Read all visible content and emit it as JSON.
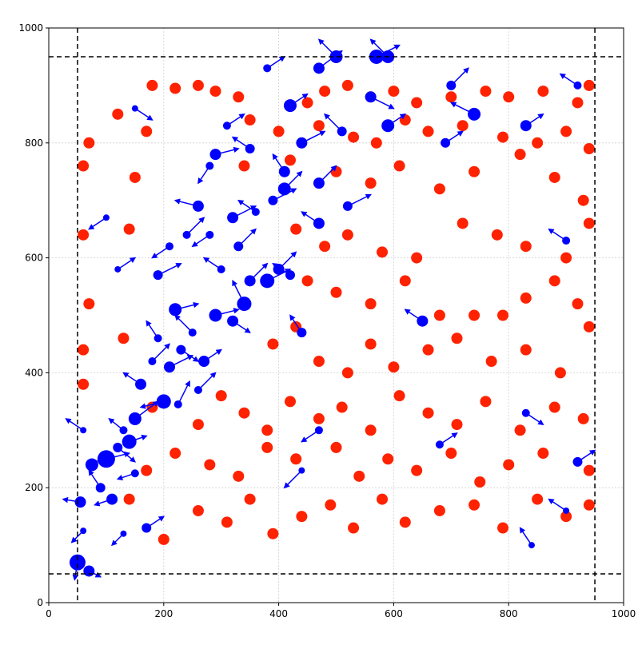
{
  "chart_data": {
    "type": "scatter",
    "xlim": [
      0,
      1000
    ],
    "ylim": [
      0,
      1000
    ],
    "xticks": [
      0,
      200,
      400,
      600,
      800,
      1000
    ],
    "yticks": [
      0,
      200,
      400,
      600,
      800,
      1000
    ],
    "grid": true,
    "hlines": [
      50,
      950
    ],
    "vlines": [
      50,
      950
    ],
    "series": [
      {
        "color": "#ff2200",
        "size": 14,
        "x": [
          180,
          220,
          260,
          290,
          330,
          450,
          480,
          520,
          560,
          600,
          640,
          700,
          760,
          800,
          860,
          920,
          940,
          70,
          120,
          170,
          350,
          400,
          470,
          530,
          570,
          620,
          660,
          720,
          790,
          850,
          900,
          940,
          60,
          150,
          340,
          420,
          500,
          560,
          610,
          680,
          740,
          820,
          880,
          930,
          60,
          140,
          430,
          480,
          520,
          580,
          640,
          720,
          780,
          830,
          900,
          940,
          70,
          450,
          500,
          560,
          620,
          680,
          740,
          790,
          830,
          880,
          920,
          60,
          130,
          390,
          430,
          470,
          520,
          560,
          600,
          660,
          710,
          770,
          830,
          890,
          940,
          60,
          180,
          260,
          300,
          340,
          380,
          420,
          470,
          510,
          560,
          610,
          660,
          710,
          760,
          820,
          880,
          930,
          170,
          220,
          280,
          330,
          380,
          430,
          500,
          540,
          590,
          640,
          700,
          750,
          800,
          860,
          940,
          140,
          200,
          260,
          310,
          350,
          390,
          440,
          490,
          530,
          580,
          620,
          680,
          740,
          790,
          850,
          900,
          940
        ],
        "y": [
          900,
          895,
          900,
          890,
          880,
          870,
          890,
          900,
          880,
          890,
          870,
          880,
          890,
          880,
          890,
          870,
          900,
          800,
          850,
          820,
          840,
          820,
          830,
          810,
          800,
          840,
          820,
          830,
          810,
          800,
          820,
          790,
          760,
          740,
          760,
          770,
          750,
          730,
          760,
          720,
          750,
          780,
          740,
          700,
          640,
          650,
          650,
          620,
          640,
          610,
          600,
          660,
          640,
          620,
          600,
          660,
          520,
          560,
          540,
          520,
          560,
          500,
          500,
          500,
          530,
          560,
          520,
          440,
          460,
          450,
          480,
          420,
          400,
          450,
          410,
          440,
          460,
          420,
          440,
          400,
          480,
          380,
          340,
          310,
          360,
          330,
          300,
          350,
          320,
          340,
          300,
          360,
          330,
          310,
          350,
          300,
          340,
          320,
          230,
          260,
          240,
          220,
          270,
          250,
          270,
          220,
          250,
          230,
          260,
          210,
          240,
          260,
          230,
          180,
          110,
          160,
          140,
          180,
          120,
          150,
          170,
          130,
          180,
          140,
          160,
          170,
          130,
          180,
          150,
          170
        ]
      },
      {
        "color": "#0000ff",
        "x": [
          50,
          70,
          55,
          60,
          75,
          100,
          90,
          120,
          110,
          130,
          150,
          140,
          160,
          180,
          200,
          210,
          190,
          230,
          220,
          250,
          270,
          290,
          320,
          340,
          300,
          350,
          380,
          400,
          420,
          330,
          360,
          320,
          280,
          260,
          240,
          210,
          190,
          290,
          280,
          310,
          350,
          390,
          410,
          410,
          440,
          470,
          470,
          520,
          510,
          560,
          590,
          470,
          500,
          570,
          590,
          420,
          380,
          440,
          650,
          690,
          740,
          700,
          830,
          900,
          830,
          840,
          920,
          900,
          680,
          470,
          440,
          150,
          100,
          120,
          920,
          60,
          170,
          130,
          150,
          225,
          260
        ],
        "y": [
          70,
          55,
          175,
          125,
          240,
          250,
          200,
          270,
          180,
          300,
          320,
          280,
          380,
          420,
          350,
          410,
          460,
          440,
          510,
          470,
          420,
          500,
          490,
          520,
          580,
          560,
          560,
          580,
          570,
          620,
          680,
          670,
          640,
          690,
          640,
          620,
          570,
          780,
          760,
          830,
          790,
          700,
          720,
          750,
          800,
          730,
          660,
          690,
          820,
          880,
          830,
          930,
          950,
          950,
          950,
          865,
          930,
          470,
          490,
          800,
          850,
          900,
          830,
          630,
          330,
          100,
          245,
          160,
          275,
          300,
          230,
          860,
          670,
          580,
          900,
          300,
          130,
          120,
          225,
          345,
          370
        ],
        "sizes": [
          20,
          14,
          14,
          8,
          16,
          22,
          12,
          12,
          14,
          10,
          16,
          18,
          14,
          10,
          18,
          14,
          10,
          12,
          16,
          10,
          14,
          16,
          14,
          18,
          10,
          14,
          18,
          14,
          12,
          12,
          10,
          14,
          10,
          14,
          10,
          10,
          12,
          14,
          10,
          10,
          12,
          12,
          16,
          14,
          14,
          14,
          14,
          12,
          12,
          14,
          16,
          14,
          16,
          18,
          16,
          16,
          10,
          12,
          14,
          12,
          16,
          12,
          14,
          10,
          10,
          8,
          12,
          8,
          10,
          10,
          8,
          8,
          8,
          8,
          10,
          8,
          12,
          8,
          10,
          10,
          10
        ],
        "u": [
          -5,
          20,
          -30,
          -20,
          30,
          40,
          -20,
          30,
          -30,
          -25,
          40,
          30,
          -30,
          30,
          -40,
          40,
          -20,
          30,
          40,
          -30,
          30,
          40,
          30,
          -20,
          -30,
          30,
          40,
          30,
          -30,
          30,
          -30,
          40,
          -30,
          -40,
          30,
          -30,
          40,
          40,
          -20,
          30,
          -30,
          40,
          30,
          -20,
          40,
          30,
          -30,
          40,
          -30,
          40,
          30,
          40,
          -30,
          40,
          -30,
          30,
          30,
          -20,
          -30,
          30,
          -40,
          30,
          30,
          -30,
          30,
          -20,
          30,
          -30,
          30,
          -30,
          -30,
          30,
          -30,
          30,
          -30,
          -30,
          30,
          -20,
          -30,
          20,
          30
        ],
        "v": [
          -30,
          -10,
          5,
          -20,
          20,
          10,
          30,
          -25,
          -10,
          20,
          30,
          10,
          20,
          30,
          -10,
          20,
          30,
          -20,
          10,
          30,
          20,
          10,
          -20,
          40,
          20,
          30,
          20,
          30,
          20,
          30,
          20,
          20,
          -20,
          10,
          30,
          -20,
          20,
          10,
          -30,
          20,
          20,
          20,
          30,
          30,
          20,
          30,
          20,
          20,
          30,
          -20,
          20,
          30,
          30,
          20,
          30,
          20,
          20,
          30,
          20,
          20,
          20,
          30,
          20,
          20,
          -20,
          30,
          20,
          20,
          20,
          -20,
          -30,
          -20,
          -20,
          20,
          20,
          20,
          20,
          -20,
          -10,
          40,
          30
        ]
      }
    ]
  }
}
